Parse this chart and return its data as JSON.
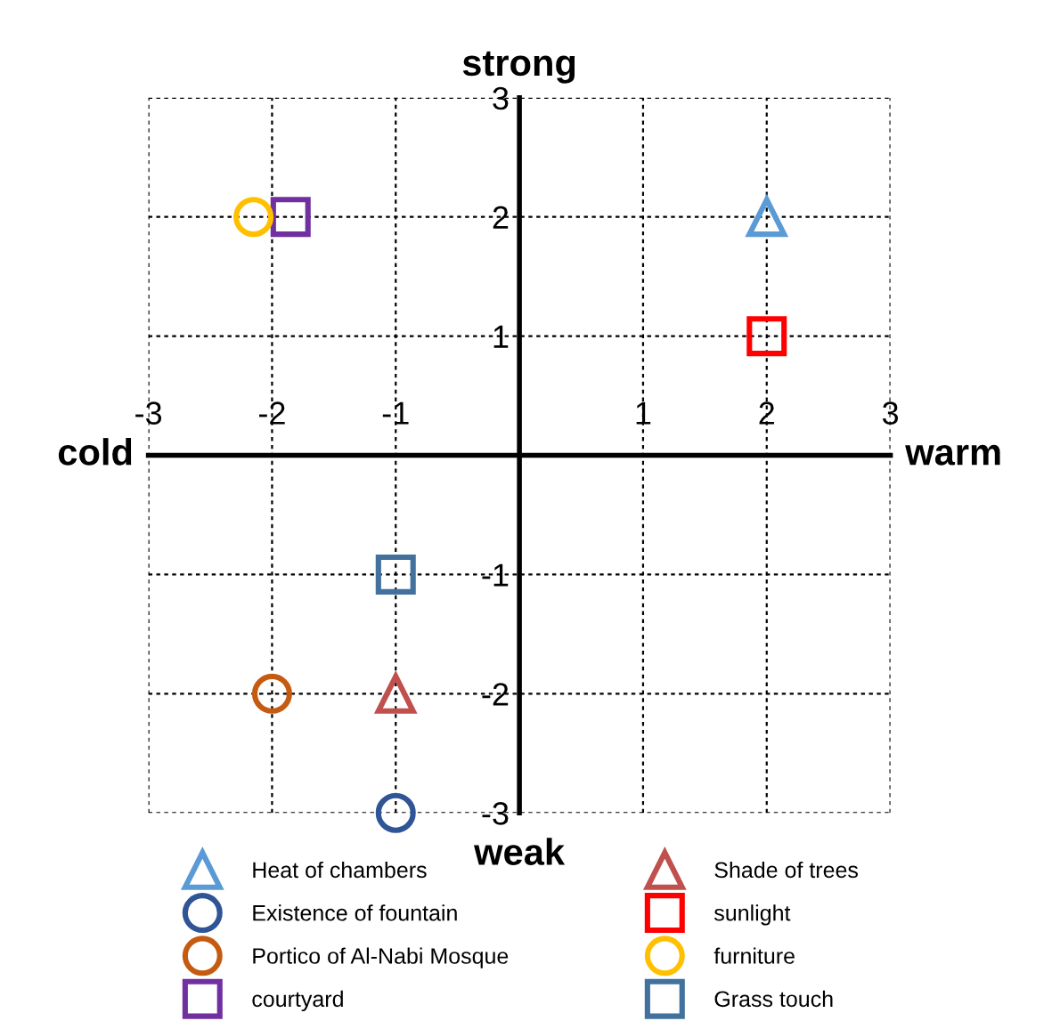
{
  "chart_data": {
    "type": "scatter",
    "xlim": [
      -3,
      3
    ],
    "ylim": [
      -3,
      3
    ],
    "xticks": [
      -3,
      -2,
      -1,
      1,
      2,
      3
    ],
    "yticks": [
      -3,
      -2,
      -1,
      1,
      2,
      3
    ],
    "grid": true,
    "legend": "bottom",
    "annotations": [
      "cold",
      "warm",
      "strong",
      "weak"
    ],
    "series": [
      {
        "name": "Heat of chambers",
        "color": "#5b9bd5",
        "marker": "triangle",
        "x": [
          2
        ],
        "values": [
          2
        ]
      },
      {
        "name": "Existence of fountain",
        "color": "#2f5597",
        "marker": "circle",
        "x": [
          -1
        ],
        "values": [
          -3
        ]
      },
      {
        "name": "Portico of Al-Nabi Mosque",
        "color": "#c55a11",
        "marker": "circle",
        "x": [
          -2
        ],
        "values": [
          -2
        ]
      },
      {
        "name": "courtyard",
        "color": "#7030a0",
        "marker": "square",
        "x": [
          -1.85
        ],
        "values": [
          2
        ]
      },
      {
        "name": "Shade of trees",
        "color": "#c0504d",
        "marker": "triangle",
        "x": [
          -1
        ],
        "values": [
          -2
        ]
      },
      {
        "name": "sunlight",
        "color": "#ff0000",
        "marker": "square",
        "x": [
          2
        ],
        "values": [
          1
        ]
      },
      {
        "name": "furniture",
        "color": "#ffc000",
        "marker": "circle",
        "x": [
          -2.15
        ],
        "values": [
          2
        ]
      },
      {
        "name": "Grass touch",
        "color": "#41719c",
        "marker": "square",
        "x": [
          -1
        ],
        "values": [
          -1
        ]
      }
    ]
  }
}
